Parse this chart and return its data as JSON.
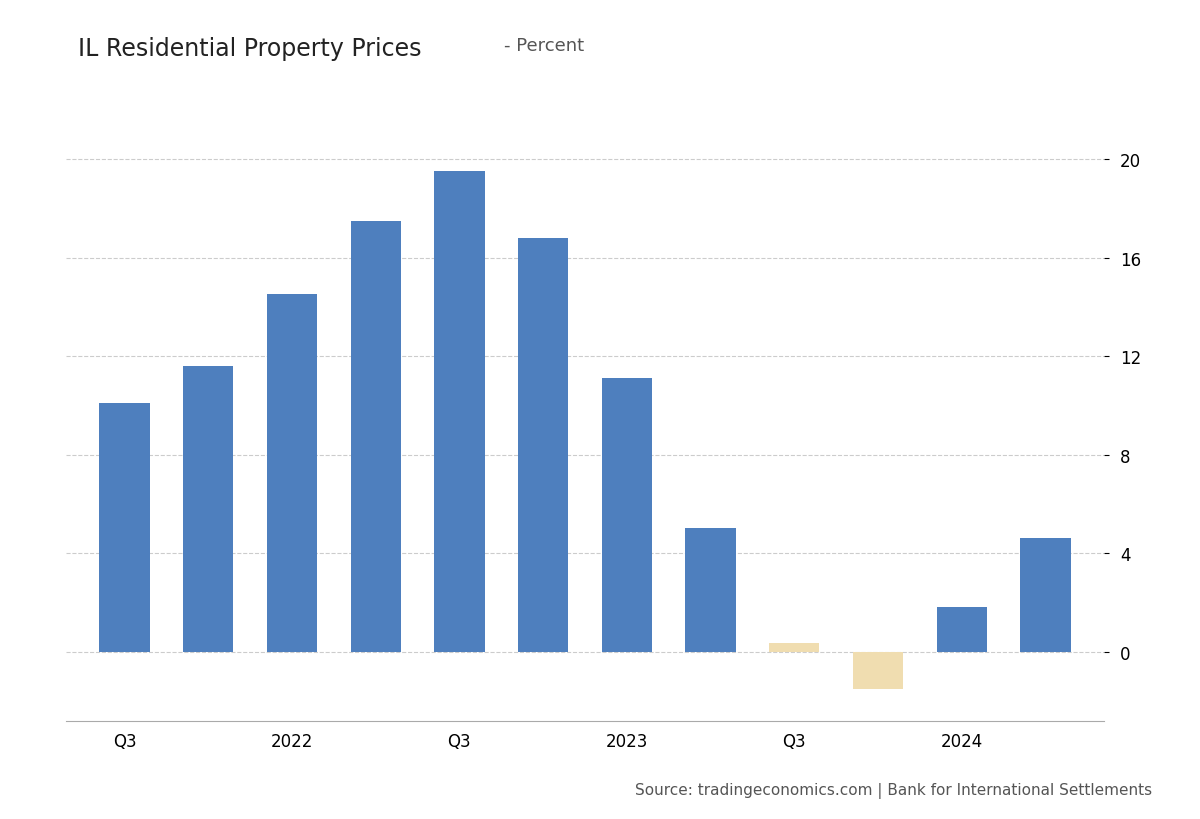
{
  "title_main": "IL Residential Property Prices",
  "title_sub": "- Percent",
  "source": "Source: tradingeconomics.com | Bank for International Settlements",
  "x_labels": [
    "Q3",
    "",
    "2022",
    "",
    "Q3",
    "",
    "2023",
    "",
    "Q3",
    "",
    "2024",
    ""
  ],
  "values": [
    10.1,
    11.6,
    14.5,
    17.5,
    19.5,
    16.8,
    11.1,
    5.0,
    0.35,
    -1.5,
    1.8,
    4.6
  ],
  "bar_colors": [
    "#4e7fbe",
    "#4e7fbe",
    "#4e7fbe",
    "#4e7fbe",
    "#4e7fbe",
    "#4e7fbe",
    "#4e7fbe",
    "#4e7fbe",
    "#f0ddb0",
    "#f0ddb0",
    "#4e7fbe",
    "#4e7fbe"
  ],
  "background_color": "#ffffff",
  "grid_color": "#cccccc",
  "yticks": [
    0,
    4,
    8,
    12,
    16,
    20
  ],
  "ylim": [
    -2.8,
    22.5
  ],
  "bar_width": 0.6,
  "title_main_fontsize": 17,
  "title_sub_fontsize": 13,
  "tick_fontsize": 12,
  "source_fontsize": 11
}
